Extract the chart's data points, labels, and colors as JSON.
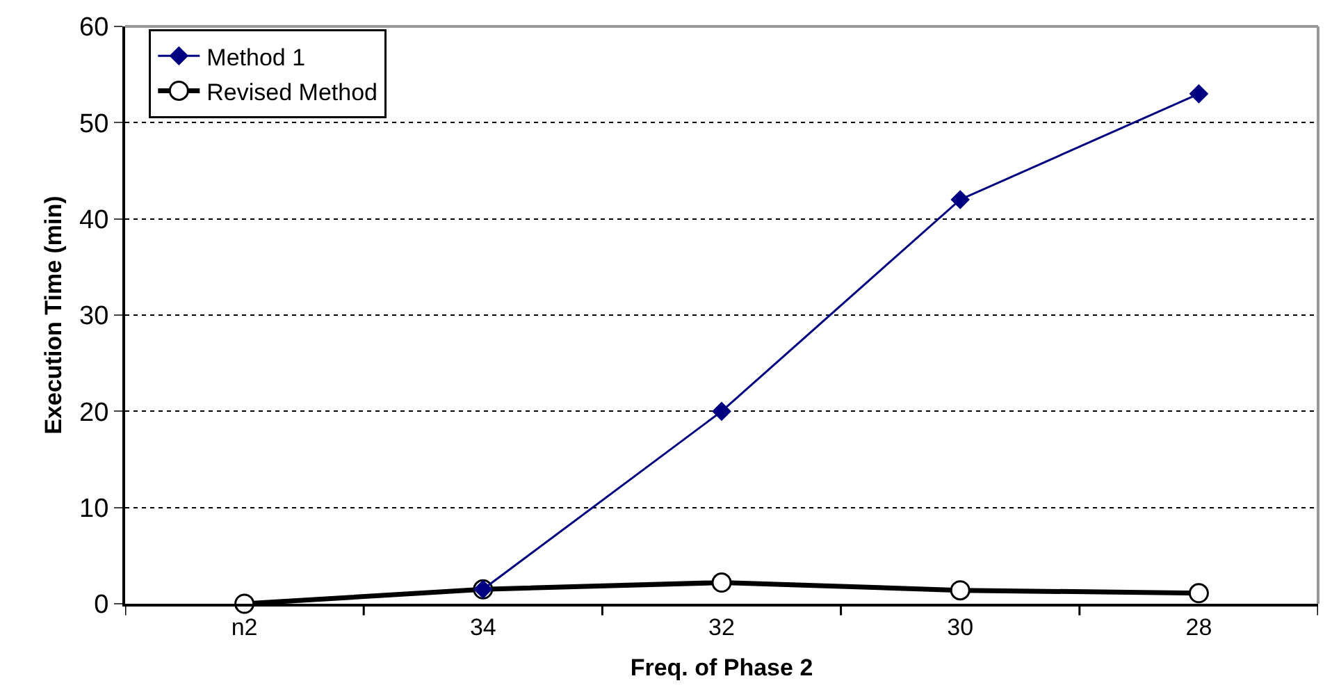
{
  "chart_data": {
    "type": "line",
    "xlabel": "Freq. of Phase 2",
    "ylabel": "Execution Time (min)",
    "categories": [
      "n2",
      "34",
      "32",
      "30",
      "28"
    ],
    "series": [
      {
        "name": "Method 1",
        "color": "#000080",
        "values": [
          null,
          1.5,
          20,
          42,
          53
        ],
        "marker": "diamond"
      },
      {
        "name": "Revised Method",
        "color": "#000000",
        "values": [
          0,
          1.5,
          2.2,
          1.4,
          1.1
        ],
        "marker": "circle"
      }
    ],
    "ylim": [
      0,
      60
    ],
    "yticks": [
      0,
      10,
      20,
      30,
      40,
      50,
      60
    ],
    "grid": "y",
    "legend": "top left",
    "line_style": "solid"
  }
}
